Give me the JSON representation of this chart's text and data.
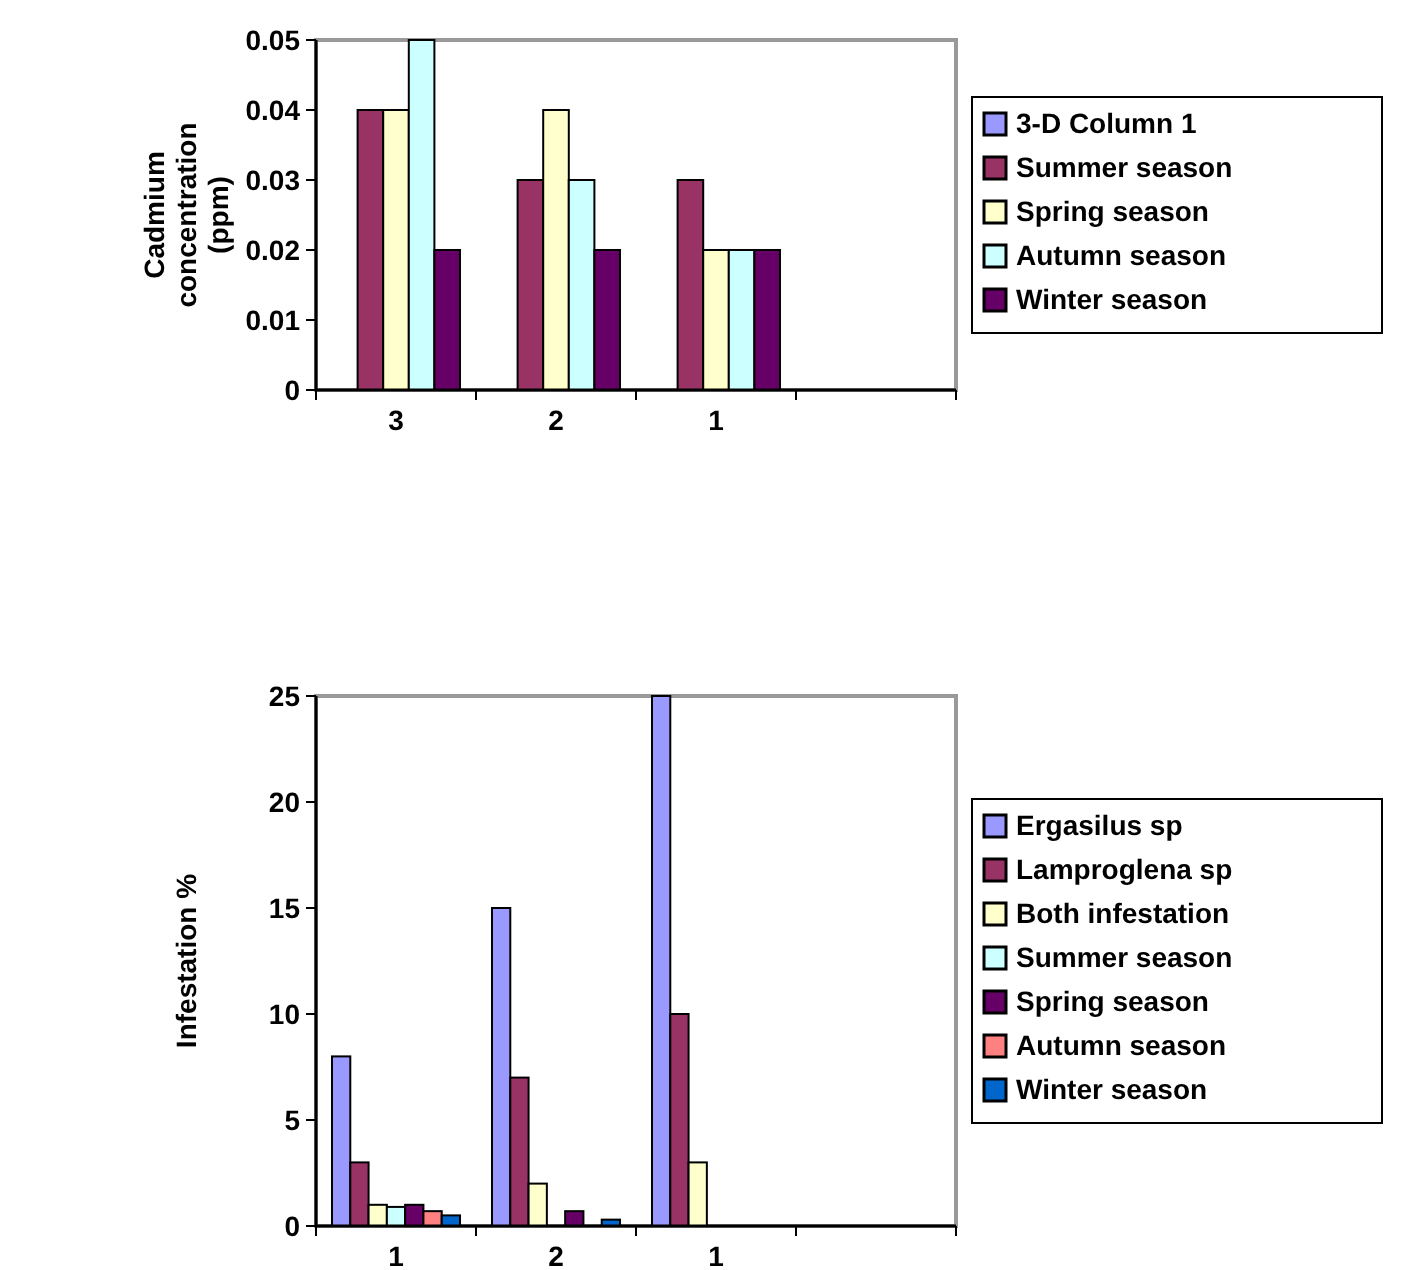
{
  "chart_data": [
    {
      "type": "bar",
      "ylabel": "Cadmium concentration (ppm)",
      "categories": [
        "3",
        "2",
        "1",
        null
      ],
      "ylim": [
        0,
        0.05
      ],
      "yticks": [
        {
          "value": 0,
          "label": "0"
        },
        0.01,
        0.02,
        0.03,
        0.04,
        0.05
      ],
      "legend": "right",
      "grid": false,
      "series": [
        {
          "name": "3-D Column 1",
          "color": "#9999ff",
          "values": [
            null,
            null,
            null,
            null
          ]
        },
        {
          "name": "Summer season",
          "color": "#993366",
          "values": [
            0.04,
            0.03,
            0.03,
            null
          ]
        },
        {
          "name": "Spring season",
          "color": "#ffffcc",
          "values": [
            0.04,
            0.04,
            0.02,
            null
          ]
        },
        {
          "name": "Autumn season",
          "color": "#ccffff",
          "values": [
            0.05,
            0.03,
            0.02,
            null
          ]
        },
        {
          "name": "Winter season",
          "color": "#660066",
          "values": [
            0.02,
            0.02,
            0.02,
            null
          ]
        }
      ]
    },
    {
      "type": "bar",
      "ylabel": "Infestation %",
      "categories": [
        "1",
        "2",
        "1",
        null
      ],
      "ylim": [
        0,
        25
      ],
      "yticks": [
        0,
        5,
        10,
        15,
        20,
        25
      ],
      "legend": "right",
      "grid": false,
      "series": [
        {
          "name": "Ergasilus sp",
          "color": "#9999ff",
          "values": [
            8,
            15,
            25,
            null
          ]
        },
        {
          "name": "Lamproglena sp",
          "color": "#993366",
          "values": [
            3,
            7,
            10,
            null
          ]
        },
        {
          "name": "Both infestation",
          "color": "#ffffcc",
          "values": [
            1,
            2,
            3,
            null
          ]
        },
        {
          "name": "Summer season",
          "color": "#ccffff",
          "values": [
            0.9,
            0,
            null,
            null
          ]
        },
        {
          "name": "Spring season",
          "color": "#660066",
          "values": [
            1,
            0.7,
            null,
            null
          ]
        },
        {
          "name": "Autumn season",
          "color": "#ff8080",
          "values": [
            0.7,
            0,
            null,
            null
          ]
        },
        {
          "name": "Winter season",
          "color": "#0066cc",
          "values": [
            0.5,
            0.3,
            null,
            null
          ]
        }
      ]
    }
  ]
}
